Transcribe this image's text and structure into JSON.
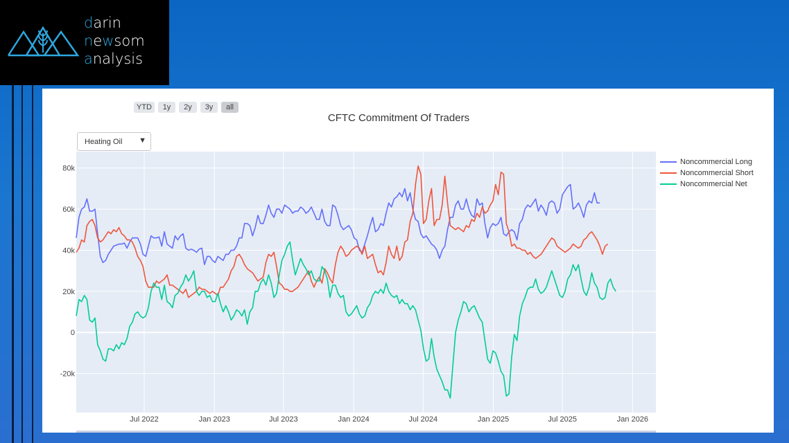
{
  "brand": {
    "line1": [
      "d",
      "arin"
    ],
    "line2": [
      "n",
      "e",
      "w",
      "som"
    ],
    "line3": [
      "a",
      "nalysis"
    ],
    "accent_color": "#2ea8e0",
    "icon": "wheat-mountains-logo-icon"
  },
  "range_selector": [
    "YTD",
    "1y",
    "2y",
    "3y",
    "all"
  ],
  "range_active": "all",
  "dropdown": {
    "value": "Heating Oil",
    "icon": "triangle-down-icon"
  },
  "chart_data": {
    "type": "line",
    "title": "CFTC Commitment Of Traders",
    "x_start": "2022-01-04",
    "x_step_days": 7,
    "xlim": [
      "2022-01-04",
      "2026-03-03"
    ],
    "ylim": [
      -39000,
      88000
    ],
    "x_ticks": [
      "Jul 2022",
      "Jan 2023",
      "Jul 2023",
      "Jan 2024",
      "Jul 2024",
      "Jan 2025",
      "Jul 2025",
      "Jan 2026"
    ],
    "x_tick_dates": [
      "2022-07-01",
      "2023-01-01",
      "2023-07-01",
      "2024-01-01",
      "2024-07-01",
      "2025-01-01",
      "2025-07-01",
      "2026-01-01"
    ],
    "y_ticks": [
      -20000,
      0,
      20000,
      40000,
      60000,
      80000
    ],
    "y_tick_labels": [
      "-20k",
      "0",
      "20k",
      "40k",
      "60k",
      "80k"
    ],
    "grid": true,
    "legend_position": "right",
    "series": [
      {
        "name": "Noncommercial Long",
        "color": "#636efa",
        "values": [
          46000,
          56000,
          60000,
          61000,
          65000,
          59000,
          59000,
          60000,
          48000,
          37000,
          34000,
          35000,
          38000,
          40000,
          42000,
          42500,
          43000,
          43000,
          43500,
          41000,
          44000,
          46000,
          46000,
          46000,
          43000,
          38000,
          37000,
          42000,
          47000,
          46000,
          46000,
          46500,
          42000,
          49000,
          43000,
          42000,
          41000,
          47000,
          45000,
          47000,
          48000,
          41000,
          40000,
          40500,
          40000,
          39000,
          40500,
          41000,
          33000,
          37000,
          37000,
          35000,
          34000,
          37000,
          36000,
          35000,
          38000,
          38000,
          40000,
          40000,
          42000,
          46000,
          46000,
          53000,
          53000,
          52000,
          47000,
          51000,
          57000,
          53000,
          53000,
          57000,
          62000,
          58000,
          56000,
          60000,
          60000,
          58000,
          62000,
          61000,
          60000,
          58000,
          59000,
          59000,
          61000,
          60000,
          58000,
          59000,
          61000,
          58000,
          55000,
          55000,
          60000,
          54000,
          52000,
          52000,
          62000,
          61000,
          57000,
          52000,
          50000,
          51000,
          52000,
          50000,
          46000,
          45000,
          40000,
          39000,
          43000,
          47000,
          52000,
          56000,
          49000,
          50000,
          53000,
          52000,
          58000,
          63000,
          61000,
          65000,
          66000,
          68000,
          66000,
          70000,
          64000,
          68000,
          60000,
          55000,
          54000,
          48000,
          46000,
          47000,
          45000,
          43000,
          42000,
          40000,
          36000,
          40000,
          42000,
          50000,
          56000,
          56000,
          62000,
          64000,
          60000,
          60000,
          65000,
          60000,
          57000,
          56000,
          65000,
          62000,
          63000,
          53000,
          46000,
          51000,
          53000,
          52000,
          53000,
          56000,
          48000,
          47000,
          49000,
          50000,
          49000,
          45000,
          53000,
          55000,
          60000,
          62000,
          61000,
          63000,
          65000,
          59000,
          62000,
          60000,
          57000,
          63000,
          64000,
          63000,
          58000,
          60000,
          67000,
          69000,
          71000,
          72000,
          60000,
          61000,
          63000,
          60000,
          56000,
          62000,
          64000,
          63000,
          68000,
          63000,
          63000
        ]
      },
      {
        "name": "Noncommercial Short",
        "color": "#ef553b",
        "values": [
          39000,
          41000,
          45000,
          44000,
          52000,
          54000,
          55000,
          52000,
          46000,
          44000,
          45000,
          47000,
          49000,
          48000,
          50000,
          49000,
          51000,
          48000,
          47000,
          45000,
          45000,
          44000,
          41000,
          37000,
          35000,
          32000,
          25000,
          22000,
          22000,
          22000,
          25000,
          24000,
          25000,
          26000,
          28000,
          23000,
          23000,
          22000,
          21000,
          20000,
          19000,
          21000,
          17000,
          18000,
          19000,
          20000,
          22000,
          21000,
          21000,
          20000,
          19000,
          20000,
          19000,
          18000,
          22000,
          22000,
          24000,
          26000,
          30000,
          32000,
          37000,
          38000,
          36000,
          33000,
          31000,
          30000,
          29000,
          27000,
          25000,
          26000,
          27000,
          34000,
          38000,
          37000,
          39000,
          32000,
          24000,
          23000,
          21000,
          21000,
          20000,
          20000,
          21000,
          22000,
          24000,
          26000,
          28000,
          30000,
          25000,
          22000,
          25000,
          27000,
          24000,
          31000,
          29000,
          26000,
          24000,
          33000,
          39000,
          42000,
          40000,
          37000,
          38000,
          40000,
          41000,
          42000,
          41000,
          38000,
          42000,
          36000,
          37000,
          38000,
          33000,
          29000,
          30000,
          28000,
          34000,
          42000,
          38000,
          36000,
          42000,
          35000,
          37000,
          44000,
          45000,
          54000,
          58000,
          72000,
          81000,
          77000,
          53000,
          55000,
          64000,
          70000,
          52000,
          55000,
          55000,
          62000,
          76000,
          63000,
          52000,
          51000,
          50000,
          51000,
          50000,
          49000,
          52000,
          51000,
          55000,
          54000,
          58000,
          56000,
          61000,
          58000,
          59000,
          62000,
          64000,
          72000,
          67000,
          78000,
          77000,
          53000,
          49000,
          42000,
          43000,
          41000,
          41000,
          40000,
          40000,
          38000,
          39000,
          37000,
          36000,
          37000,
          38000,
          40000,
          42000,
          44000,
          46000,
          45000,
          42000,
          41000,
          40000,
          39000,
          40000,
          41000,
          43000,
          42000,
          41000,
          42000,
          45000,
          46000,
          48000,
          49000,
          47000,
          45000,
          42000,
          38000,
          42000,
          43000
        ]
      },
      {
        "name": "Noncommercial Net",
        "color": "#00cc96",
        "values": [
          8000,
          16000,
          15000,
          18000,
          16000,
          6000,
          5000,
          7000,
          -6000,
          -9000,
          -13000,
          -14000,
          -8000,
          -8000,
          -9000,
          -6000,
          -8000,
          -5000,
          -6000,
          -3000,
          3000,
          5000,
          9000,
          10000,
          8000,
          7000,
          8000,
          12000,
          20000,
          24000,
          22000,
          22000,
          16000,
          23000,
          15000,
          14000,
          12000,
          18000,
          19000,
          22000,
          24000,
          28000,
          25000,
          27000,
          30000,
          20000,
          18000,
          20000,
          20000,
          17000,
          18000,
          15000,
          15000,
          19000,
          14000,
          10000,
          13000,
          10000,
          6000,
          8000,
          11000,
          10000,
          8000,
          11000,
          4000,
          10000,
          12000,
          20000,
          20000,
          24000,
          26000,
          23000,
          28000,
          24000,
          17000,
          19000,
          28000,
          35000,
          38000,
          42000,
          44000,
          35000,
          28000,
          32000,
          36000,
          33000,
          31000,
          28000,
          30000,
          26000,
          25000,
          25000,
          32000,
          30000,
          26000,
          17000,
          23000,
          23000,
          19000,
          17000,
          18000,
          10000,
          8000,
          9000,
          11000,
          13000,
          9000,
          7000,
          8000,
          12000,
          14000,
          18000,
          20000,
          19000,
          21000,
          19000,
          24000,
          20000,
          18000,
          17000,
          18000,
          14000,
          16000,
          14000,
          14000,
          11000,
          13000,
          11000,
          6000,
          1000,
          -8000,
          -14000,
          -13000,
          -3000,
          -12000,
          -18000,
          -21000,
          -24000,
          -28000,
          -28000,
          -32000,
          -16000,
          0,
          6000,
          10000,
          15000,
          14000,
          10000,
          12000,
          13000,
          10000,
          7000,
          5000,
          -4000,
          -13000,
          -15000,
          -9000,
          -10000,
          -14000,
          -19000,
          -21000,
          -31000,
          -30000,
          -12000,
          -1000,
          -4000,
          8000,
          14000,
          17000,
          21000,
          22000,
          22000,
          26000,
          21000,
          19000,
          20000,
          22000,
          26000,
          30000,
          26000,
          22000,
          18000,
          17000,
          20000,
          26000,
          28000,
          33000,
          30000,
          33000,
          26000,
          20000,
          18000,
          22000,
          29000,
          24000,
          22000,
          17000,
          16000,
          17000,
          24000,
          26000,
          22000,
          20000
        ]
      }
    ]
  }
}
